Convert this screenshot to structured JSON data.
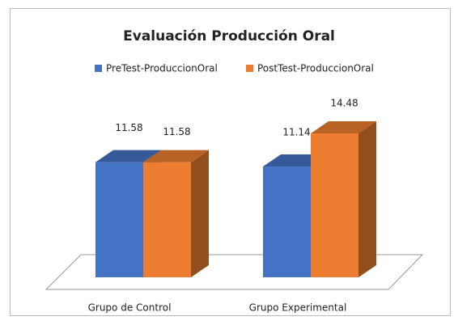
{
  "chart_data": {
    "type": "bar3d",
    "title": "Evaluación Producción Oral",
    "categories": [
      "Grupo de Control",
      "Grupo Experimental"
    ],
    "series": [
      {
        "name": "PreTest-ProduccionOral",
        "color": "#4472c4",
        "values": [
          11.58,
          11.14
        ]
      },
      {
        "name": "PostTest-ProduccionOral",
        "color": "#ed7d31",
        "values": [
          11.58,
          14.48
        ]
      }
    ]
  }
}
